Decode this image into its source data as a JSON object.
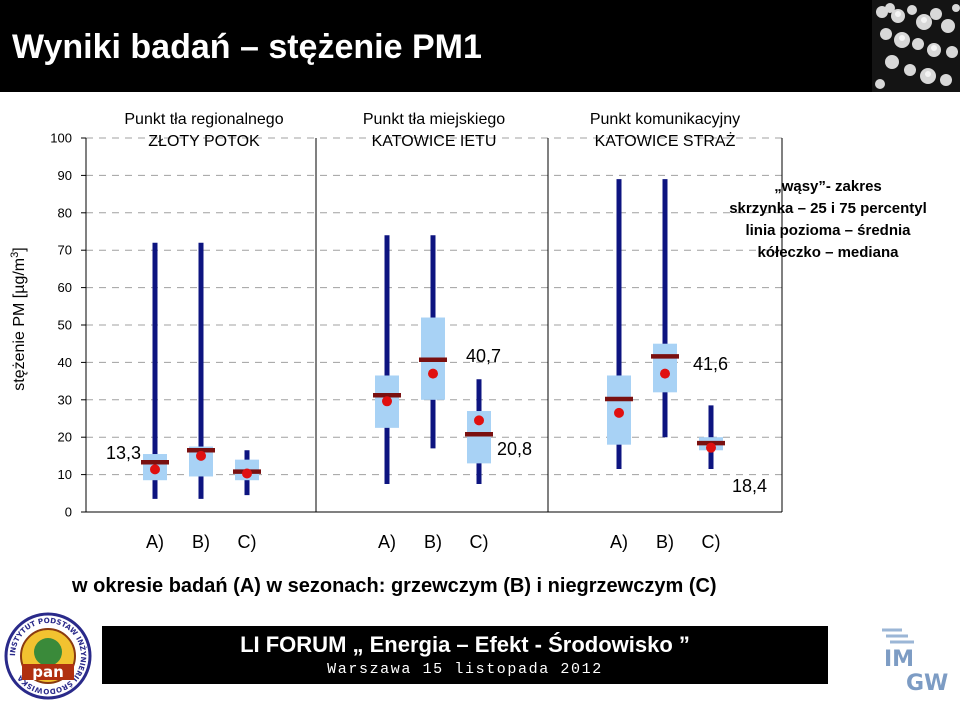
{
  "header": {
    "title": "Wyniki badań – stężenie PM1"
  },
  "colors": {
    "whisker": "#0d1480",
    "box": "#a8d2f5",
    "mean": "#7a1010",
    "median": "#e01010",
    "grid": "#a0a0a0"
  },
  "chart_data": {
    "type": "boxplot",
    "ylabel": "stężenie PM [µg/m",
    "ylabel_sup": "3",
    "ylabel_end": "]",
    "ylim": [
      0,
      100
    ],
    "yticks": [
      "0",
      "10",
      "20",
      "30",
      "40",
      "50",
      "60",
      "70",
      "80",
      "90",
      "100"
    ],
    "grid": true,
    "groups": [
      {
        "name_line1": "Punkt tła regionalnego",
        "name_line2": "ZŁOTY POTOK",
        "annotation": "13,3",
        "series": [
          {
            "label": "A)",
            "min": 3.5,
            "q1": 8.5,
            "q3": 15.5,
            "max": 72,
            "mean": 13.3,
            "median": 11.4
          },
          {
            "label": "B)",
            "min": 3.5,
            "q1": 9.5,
            "q3": 17.5,
            "max": 72,
            "mean": 16.5,
            "median": 15
          },
          {
            "label": "C)",
            "min": 4.5,
            "q1": 8.5,
            "q3": 14,
            "max": 16.5,
            "mean": 10.8,
            "median": 10.3
          }
        ]
      },
      {
        "name_line1": "Punkt tła miejskiego",
        "name_line2": "KATOWICE IETU",
        "annotation_b": "40,7",
        "annotation_c": "20,8",
        "series": [
          {
            "label": "A)",
            "min": 7.5,
            "q1": 22.5,
            "q3": 36.5,
            "max": 74,
            "mean": 31.2,
            "median": 29.6
          },
          {
            "label": "B)",
            "min": 17,
            "q1": 30,
            "q3": 52,
            "max": 74,
            "mean": 40.7,
            "median": 37
          },
          {
            "label": "C)",
            "min": 7.5,
            "q1": 13,
            "q3": 27,
            "max": 35.5,
            "mean": 20.8,
            "median": 24.5
          }
        ]
      },
      {
        "name_line1": "Punkt komunikacyjny",
        "name_line2": "KATOWICE STRAŻ",
        "annotation_b": "41,6",
        "annotation_c": "18,4",
        "series": [
          {
            "label": "A)",
            "min": 11.5,
            "q1": 18,
            "q3": 36.5,
            "max": 89,
            "mean": 30.2,
            "median": 26.5
          },
          {
            "label": "B)",
            "min": 20,
            "q1": 32,
            "q3": 45,
            "max": 89,
            "mean": 41.6,
            "median": 37
          },
          {
            "label": "C)",
            "min": 11.5,
            "q1": 16.5,
            "q3": 20,
            "max": 28.5,
            "mean": 18.4,
            "median": 17.2
          }
        ]
      }
    ],
    "legend": {
      "position": "top-right",
      "line1": "„wąsy”- zakres",
      "line2": "skrzynka – 25 i 75 percentyl",
      "line3": "linia pozioma – średnia",
      "line4": "kółeczko – mediana"
    }
  },
  "caption": "w okresie badań (A)  w sezonach: grzewczym (B) i niegrzewczym (C)",
  "footer": {
    "title": "LI FORUM „ Energia – Efekt - Środowisko ”",
    "subtitle": "Warszawa 15 listopada 2012"
  },
  "logos": {
    "left_text": "INSTYTUT PODSTAW INŻYNIERII ŚRODOWISKA",
    "left_center": "pan",
    "right_line1": "IM",
    "right_line2": "GW"
  }
}
